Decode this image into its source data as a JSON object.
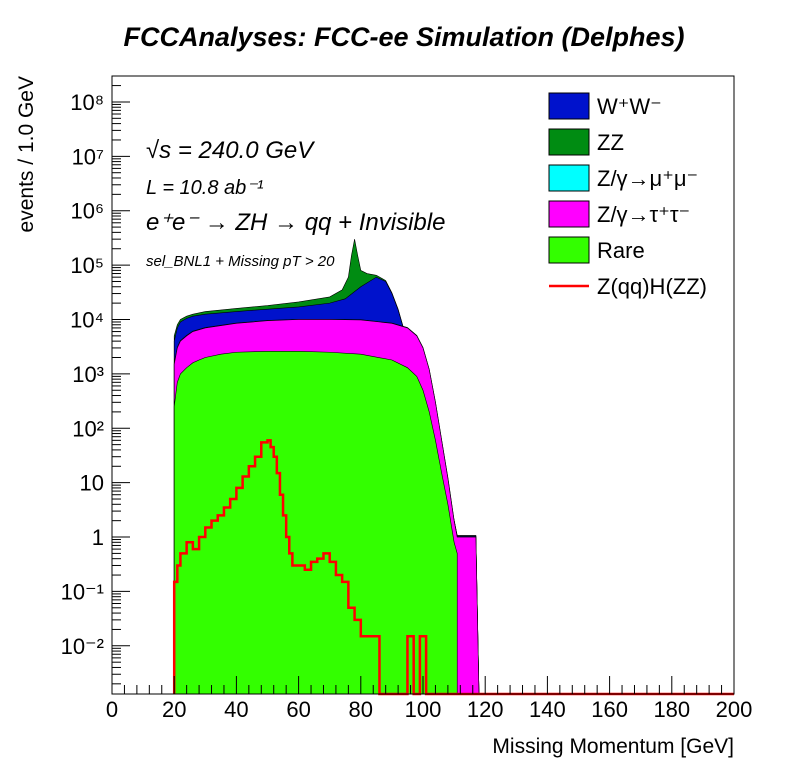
{
  "chart_data": {
    "type": "area",
    "title": "FCCAnalyses: FCC-ee Simulation (Delphes)",
    "xlabel": "Missing Momentum [GeV]",
    "ylabel": "events / 1.0 GeV",
    "xlim": [
      0,
      200
    ],
    "ylim": [
      0.0013,
      300000000
    ],
    "y_scale": "log",
    "grid": false,
    "stacked": true,
    "legend_position": "top-right",
    "x_ticks": [
      "0",
      "20",
      "40",
      "60",
      "80",
      "100",
      "120",
      "140",
      "160",
      "180",
      "200"
    ],
    "y_ticks": [
      {
        "label": "10⁸",
        "value": 100000000
      },
      {
        "label": "10⁷",
        "value": 10000000
      },
      {
        "label": "10⁶",
        "value": 1000000
      },
      {
        "label": "10⁵",
        "value": 100000
      },
      {
        "label": "10⁴",
        "value": 10000
      },
      {
        "label": "10³",
        "value": 1000
      },
      {
        "label": "10²",
        "value": 100
      },
      {
        "label": "10",
        "value": 10
      },
      {
        "label": "1",
        "value": 1
      },
      {
        "label": "10⁻¹",
        "value": 0.1
      },
      {
        "label": "10⁻²",
        "value": 0.01
      }
    ],
    "annotations": {
      "sqrt_s": "√s = 240.0 GeV",
      "lumi": "L = 10.8 ab⁻¹",
      "process": "e⁺e⁻ → ZH → qq + Invisible",
      "selection": "sel_BNL1 + Missing pT > 20"
    },
    "series": [
      {
        "name": "Rare",
        "color": "#33ff00",
        "kind": "fill",
        "points": [
          [
            20,
            250
          ],
          [
            21,
            700
          ],
          [
            22,
            1000
          ],
          [
            24,
            1300
          ],
          [
            26,
            1600
          ],
          [
            28,
            1800
          ],
          [
            30,
            2000
          ],
          [
            35,
            2300
          ],
          [
            40,
            2500
          ],
          [
            50,
            2600
          ],
          [
            60,
            2600
          ],
          [
            70,
            2500
          ],
          [
            80,
            2300
          ],
          [
            90,
            1800
          ],
          [
            95,
            1300
          ],
          [
            98,
            900
          ],
          [
            100,
            500
          ],
          [
            102,
            200
          ],
          [
            104,
            60
          ],
          [
            106,
            15
          ],
          [
            108,
            4
          ],
          [
            110,
            0.8
          ],
          [
            111,
            0.5
          ]
        ]
      },
      {
        "name": "Z/γ→τ⁺τ⁻",
        "color": "#ff00ff",
        "kind": "fill",
        "points": [
          [
            20,
            1500
          ],
          [
            21,
            3000
          ],
          [
            22,
            4000
          ],
          [
            24,
            5000
          ],
          [
            26,
            6000
          ],
          [
            30,
            7000
          ],
          [
            40,
            8500
          ],
          [
            50,
            9500
          ],
          [
            60,
            10000
          ],
          [
            70,
            10000
          ],
          [
            80,
            9800
          ],
          [
            90,
            8500
          ],
          [
            95,
            7000
          ],
          [
            98,
            5000
          ],
          [
            100,
            3000
          ],
          [
            102,
            1200
          ],
          [
            104,
            300
          ],
          [
            106,
            60
          ],
          [
            108,
            12
          ],
          [
            110,
            2
          ],
          [
            111,
            1
          ],
          [
            117,
            1
          ],
          [
            118,
            0.0013
          ]
        ]
      },
      {
        "name": "Z/γ→μ⁺μ⁻",
        "color": "#00ffff",
        "kind": "fill",
        "points": [
          [
            20,
            1600
          ],
          [
            21,
            3100
          ],
          [
            22,
            4100
          ],
          [
            24,
            5100
          ],
          [
            26,
            6100
          ],
          [
            30,
            7100
          ],
          [
            40,
            8600
          ],
          [
            50,
            9600
          ],
          [
            60,
            10100
          ],
          [
            70,
            10100
          ],
          [
            80,
            9900
          ],
          [
            90,
            8600
          ],
          [
            95,
            7100
          ],
          [
            98,
            5100
          ],
          [
            100,
            3050
          ],
          [
            102,
            1220
          ],
          [
            104,
            305
          ],
          [
            106,
            61
          ],
          [
            108,
            12.5
          ],
          [
            110,
            2.05
          ],
          [
            111,
            1.02
          ],
          [
            117,
            1.02
          ],
          [
            118,
            0.0013
          ]
        ]
      },
      {
        "name": "W⁺W⁻",
        "color": "#0012cc",
        "kind": "fill",
        "points": [
          [
            20,
            4000
          ],
          [
            21,
            7000
          ],
          [
            22,
            9000
          ],
          [
            24,
            10500
          ],
          [
            26,
            11500
          ],
          [
            30,
            12500
          ],
          [
            40,
            14000
          ],
          [
            50,
            15500
          ],
          [
            60,
            17000
          ],
          [
            70,
            20000
          ],
          [
            75,
            24000
          ],
          [
            80,
            40000
          ],
          [
            85,
            60000
          ],
          [
            88,
            50000
          ],
          [
            90,
            30000
          ],
          [
            92,
            15000
          ],
          [
            94,
            6000
          ],
          [
            96,
            3000
          ],
          [
            98,
            2000
          ],
          [
            100,
            1000
          ],
          [
            102,
            400
          ],
          [
            104,
            100
          ],
          [
            106,
            25
          ],
          [
            108,
            6
          ],
          [
            110,
            2
          ],
          [
            111,
            1.05
          ],
          [
            117,
            1.05
          ],
          [
            118,
            0.0013
          ]
        ]
      },
      {
        "name": "ZZ",
        "color": "#008c12",
        "kind": "fill",
        "points": [
          [
            20,
            5000
          ],
          [
            21,
            8000
          ],
          [
            22,
            10000
          ],
          [
            24,
            11500
          ],
          [
            26,
            12500
          ],
          [
            30,
            14000
          ],
          [
            40,
            16000
          ],
          [
            50,
            18000
          ],
          [
            60,
            21000
          ],
          [
            70,
            26000
          ],
          [
            74,
            35000
          ],
          [
            76,
            60000
          ],
          [
            77,
            150000
          ],
          [
            78,
            300000
          ],
          [
            79,
            150000
          ],
          [
            80,
            80000
          ],
          [
            82,
            70000
          ],
          [
            85,
            65000
          ],
          [
            88,
            52000
          ],
          [
            90,
            31000
          ],
          [
            92,
            15500
          ],
          [
            94,
            6200
          ],
          [
            96,
            3100
          ],
          [
            98,
            2050
          ],
          [
            100,
            1020
          ],
          [
            102,
            410
          ],
          [
            104,
            102
          ],
          [
            106,
            26
          ],
          [
            108,
            6.1
          ],
          [
            110,
            2.05
          ],
          [
            111,
            1.07
          ],
          [
            117,
            1.07
          ],
          [
            118,
            0.0013
          ]
        ]
      },
      {
        "name": "Z(qq)H(ZZ)",
        "color": "#ff0000",
        "kind": "line",
        "points": [
          [
            20,
            0.0013
          ],
          [
            20,
            0.15
          ],
          [
            21,
            0.15
          ],
          [
            21,
            0.3
          ],
          [
            22,
            0.3
          ],
          [
            22,
            0.5
          ],
          [
            24,
            0.5
          ],
          [
            24,
            0.8
          ],
          [
            26,
            0.8
          ],
          [
            26,
            0.6
          ],
          [
            28,
            0.6
          ],
          [
            28,
            1.0
          ],
          [
            30,
            1.0
          ],
          [
            30,
            1.5
          ],
          [
            32,
            1.5
          ],
          [
            32,
            2.0
          ],
          [
            34,
            2.0
          ],
          [
            34,
            2.5
          ],
          [
            36,
            2.5
          ],
          [
            36,
            3.5
          ],
          [
            38,
            3.5
          ],
          [
            38,
            5.0
          ],
          [
            40,
            5.0
          ],
          [
            40,
            8.0
          ],
          [
            42,
            8.0
          ],
          [
            42,
            13
          ],
          [
            44,
            13
          ],
          [
            44,
            20
          ],
          [
            46,
            20
          ],
          [
            46,
            30
          ],
          [
            48,
            30
          ],
          [
            48,
            55
          ],
          [
            50,
            55
          ],
          [
            50,
            60
          ],
          [
            51,
            60
          ],
          [
            51,
            45
          ],
          [
            52,
            45
          ],
          [
            52,
            30
          ],
          [
            53,
            30
          ],
          [
            53,
            15
          ],
          [
            54,
            15
          ],
          [
            54,
            6
          ],
          [
            55,
            6
          ],
          [
            55,
            2.5
          ],
          [
            56,
            2.5
          ],
          [
            56,
            1
          ],
          [
            57,
            1
          ],
          [
            57,
            0.5
          ],
          [
            58,
            0.5
          ],
          [
            58,
            0.3
          ],
          [
            62,
            0.3
          ],
          [
            62,
            0.25
          ],
          [
            64,
            0.25
          ],
          [
            64,
            0.35
          ],
          [
            66,
            0.35
          ],
          [
            66,
            0.4
          ],
          [
            68,
            0.4
          ],
          [
            68,
            0.5
          ],
          [
            70,
            0.5
          ],
          [
            70,
            0.35
          ],
          [
            72,
            0.35
          ],
          [
            72,
            0.2
          ],
          [
            74,
            0.2
          ],
          [
            74,
            0.15
          ],
          [
            76,
            0.15
          ],
          [
            76,
            0.05
          ],
          [
            78,
            0.05
          ],
          [
            78,
            0.03
          ],
          [
            80,
            0.03
          ],
          [
            80,
            0.015
          ],
          [
            86,
            0.015
          ],
          [
            86,
            0.0013
          ],
          [
            95,
            0.0013
          ],
          [
            95,
            0.015
          ],
          [
            97,
            0.015
          ],
          [
            97,
            0.0013
          ],
          [
            99,
            0.0013
          ],
          [
            99,
            0.015
          ],
          [
            101,
            0.015
          ],
          [
            101,
            0.0013
          ],
          [
            200,
            0.0013
          ]
        ]
      }
    ]
  }
}
